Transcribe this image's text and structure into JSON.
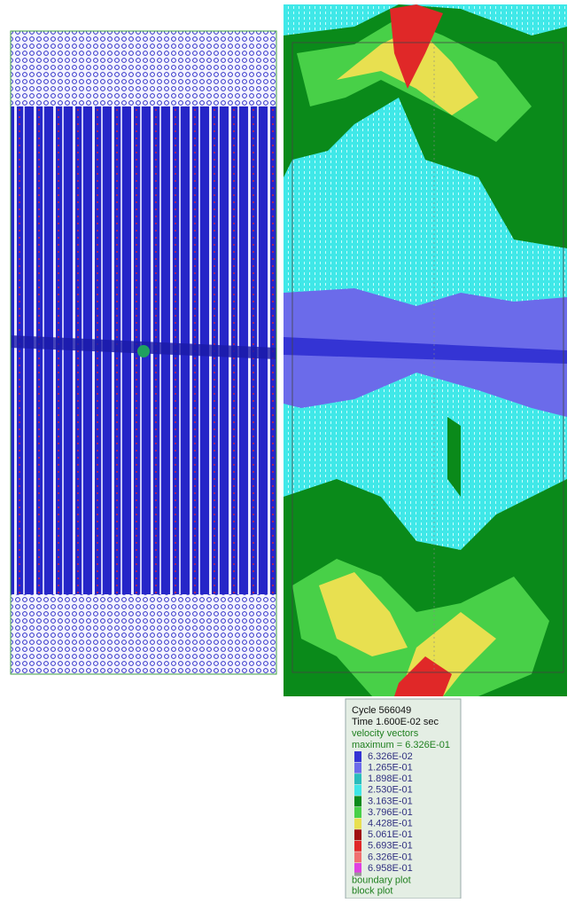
{
  "legend": {
    "cycle": "Cycle  566049",
    "time": "Time  1.600E-02 sec",
    "title": "velocity vectors",
    "maximum": "maximum =     6.326E-01",
    "items": [
      {
        "label": "6.326E-02",
        "color": "#3434d4"
      },
      {
        "label": "1.265E-01",
        "color": "#6b6bea"
      },
      {
        "label": "1.898E-01",
        "color": "#28bcbc"
      },
      {
        "label": "2.530E-01",
        "color": "#3ee6e6"
      },
      {
        "label": "3.163E-01",
        "color": "#0a8a1a"
      },
      {
        "label": "3.796E-01",
        "color": "#48d048"
      },
      {
        "label": "4.428E-01",
        "color": "#e8e050"
      },
      {
        "label": "5.061E-01",
        "color": "#a01010"
      },
      {
        "label": "5.693E-01",
        "color": "#e02828"
      },
      {
        "label": "6.326E-01",
        "color": "#f07070"
      },
      {
        "label": "6.958E-01",
        "color": "#e040e0"
      }
    ],
    "footer": [
      "boundary plot",
      "block plot"
    ]
  }
}
